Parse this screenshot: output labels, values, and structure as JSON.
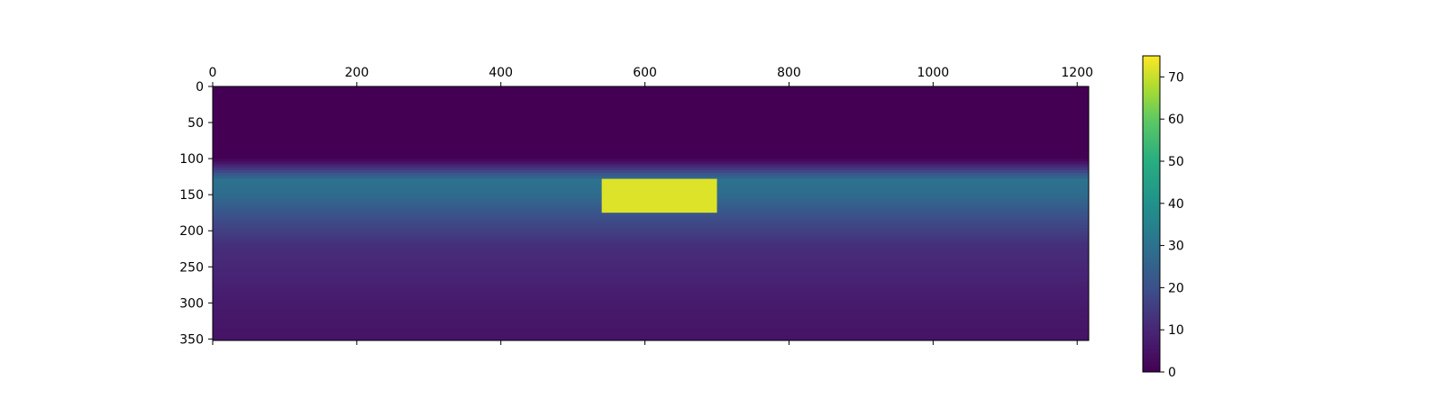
{
  "chart_data": {
    "type": "heatmap",
    "title": "",
    "xlabel": "",
    "ylabel": "",
    "x_axis_position": "top",
    "xlim": [
      0,
      1216
    ],
    "ylim": [
      352,
      0
    ],
    "x_ticks": [
      0,
      200,
      400,
      600,
      800,
      1000,
      1200
    ],
    "y_ticks": [
      0,
      50,
      100,
      150,
      200,
      250,
      300,
      350
    ],
    "colormap": "viridis",
    "colorbar": {
      "range": [
        0,
        75
      ],
      "ticks": [
        0,
        10,
        20,
        30,
        40,
        50,
        60,
        70
      ],
      "placement": "right"
    },
    "grid": false,
    "depth_profile": [
      {
        "row": 0,
        "value": 0
      },
      {
        "row": 100,
        "value": 0
      },
      {
        "row": 130,
        "value": 30
      },
      {
        "row": 150,
        "value": 28
      },
      {
        "row": 180,
        "value": 20
      },
      {
        "row": 220,
        "value": 12
      },
      {
        "row": 300,
        "value": 7
      },
      {
        "row": 352,
        "value": 5
      }
    ],
    "far_region": {
      "x": [
        540,
        700
      ],
      "y": [
        128,
        175
      ],
      "value": 72
    },
    "colors": {
      "dark": "#440154",
      "mid": "#21918c",
      "bright": "#fde725"
    }
  }
}
